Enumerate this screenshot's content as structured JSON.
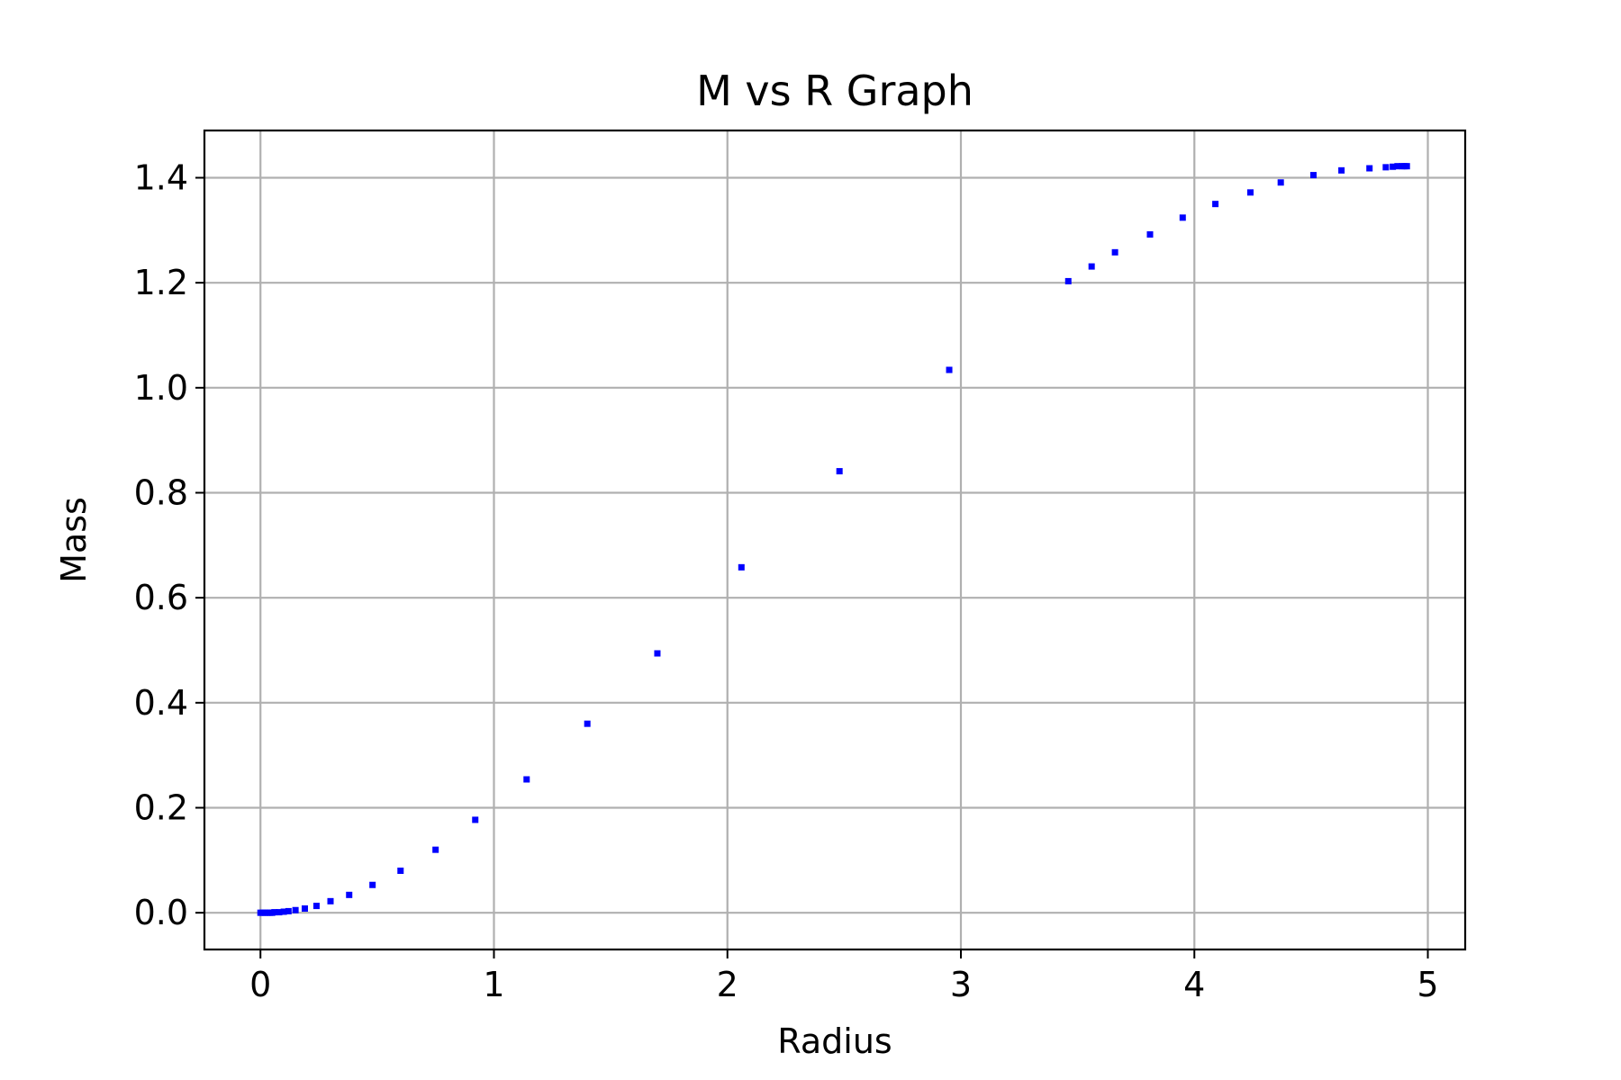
{
  "chart_data": {
    "type": "scatter",
    "title": "M vs R Graph",
    "xlabel": "Radius",
    "ylabel": "Mass",
    "xlim": [
      -0.24,
      5.16
    ],
    "ylim": [
      -0.07,
      1.49
    ],
    "xticks": [
      0,
      1,
      2,
      3,
      4,
      5
    ],
    "xtick_labels": [
      "0",
      "1",
      "2",
      "3",
      "4",
      "5"
    ],
    "yticks": [
      0.0,
      0.2,
      0.4,
      0.6,
      0.8,
      1.0,
      1.2,
      1.4
    ],
    "ytick_labels": [
      "0.0",
      "0.2",
      "0.4",
      "0.6",
      "0.8",
      "1.0",
      "1.2",
      "1.4"
    ],
    "grid": true,
    "grid_color": "#b0b0b0",
    "marker_color": "#0000ff",
    "marker_shape": "square",
    "series": [
      {
        "x": [
          0.0,
          0.01,
          0.02,
          0.03,
          0.04,
          0.05,
          0.06,
          0.08,
          0.1,
          0.12,
          0.15,
          0.19,
          0.24,
          0.3,
          0.38,
          0.48,
          0.6,
          0.75,
          0.92,
          1.14,
          1.4,
          1.7,
          2.06,
          2.48,
          2.95,
          3.46,
          3.56,
          3.66,
          3.81,
          3.95,
          4.09,
          4.24,
          4.37,
          4.51,
          4.63,
          4.75,
          4.82,
          4.85,
          4.87,
          4.89,
          4.9,
          4.91
        ],
        "y": [
          0.0,
          0.0,
          0.0,
          0.0,
          0.0,
          0.0,
          0.001,
          0.001,
          0.002,
          0.003,
          0.005,
          0.008,
          0.013,
          0.022,
          0.034,
          0.053,
          0.08,
          0.12,
          0.177,
          0.254,
          0.36,
          0.494,
          0.658,
          0.841,
          1.034,
          1.203,
          1.231,
          1.258,
          1.292,
          1.324,
          1.35,
          1.372,
          1.391,
          1.405,
          1.414,
          1.418,
          1.42,
          1.421,
          1.422,
          1.422,
          1.422,
          1.422
        ]
      }
    ]
  }
}
